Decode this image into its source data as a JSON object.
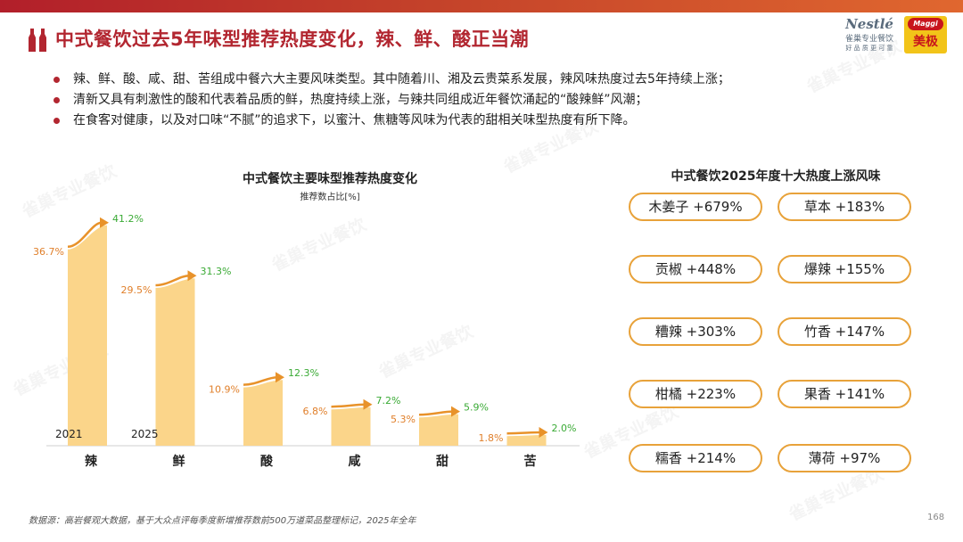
{
  "header": {
    "title": "中式餐饮过去5年味型推荐热度变化，辣、鲜、酸正当潮",
    "logo_nestle_line1": "Nestlé",
    "logo_nestle_line2": "雀巢专业餐饮",
    "logo_nestle_line3": "好 品 质 更 可 靠",
    "logo_maggi_line1": "Maggi",
    "logo_maggi_line2": "美极"
  },
  "bullets": [
    "辣、鲜、酸、咸、甜、苦组成中餐六大主要风味类型。其中随着川、湘及云贵菜系发展，辣风味热度过去5年持续上涨；",
    "清新又具有刺激性的酸和代表着品质的鲜，热度持续上涨，与辣共同组成近年餐饮涌起的“酸辣鲜”风潮；",
    "在食客对健康，以及对口味“不腻”的追求下，以蜜汁、焦糖等风味为代表的甜相关味型热度有所下降。"
  ],
  "chart_data": {
    "type": "bar",
    "title": "中式餐饮主要味型推荐热度变化",
    "subtitle": "推荐数占比[%]",
    "categories": [
      "辣",
      "鲜",
      "酸",
      "咸",
      "甜",
      "苦"
    ],
    "years": [
      "2021",
      "2025"
    ],
    "series": [
      {
        "name": "2021",
        "values": [
          36.7,
          29.5,
          10.9,
          6.8,
          5.3,
          1.8
        ]
      },
      {
        "name": "2025",
        "values": [
          41.2,
          31.3,
          12.3,
          7.2,
          5.9,
          2.0
        ]
      }
    ],
    "value_labels_2021": [
      "36.7%",
      "29.5%",
      "10.9%",
      "6.8%",
      "5.3%",
      "1.8%"
    ],
    "value_labels_2025": [
      "41.2%",
      "31.3%",
      "12.3%",
      "7.2%",
      "5.9%",
      "2.0%"
    ],
    "colors": {
      "bar": "#fbd58a",
      "arrow": "#e8922a",
      "label_2021": "#e07f2a",
      "label_2025": "#3aaa35"
    }
  },
  "right_panel": {
    "title": "中式餐饮2025年度十大热度上涨风味",
    "items": [
      "木姜子 +679%",
      "草本 +183%",
      "贡椒 +448%",
      "爆辣 +155%",
      "糟辣 +303%",
      "竹香 +147%",
      "柑橘 +223%",
      "果香 +141%",
      "糯香 +214%",
      "薄荷 +97%"
    ]
  },
  "footer": {
    "source": "数据源：高岩餐观大数据，基于大众点评每季度新增推荐数前500万道菜品整理标记，2025年全年",
    "page_number": "168"
  },
  "watermark": "雀巢专业餐饮",
  "theme": {
    "accent": "#b22630",
    "pill_border": "#e8a23a"
  }
}
